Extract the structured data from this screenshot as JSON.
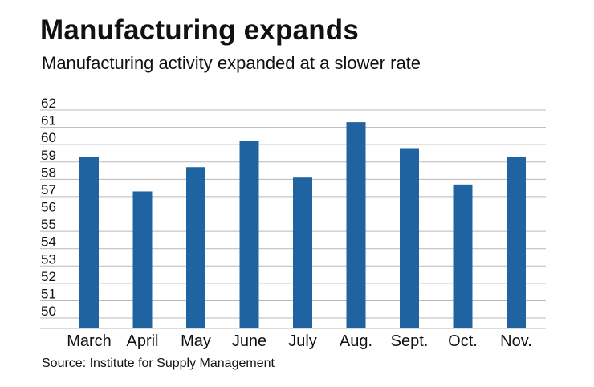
{
  "chart_data": {
    "type": "bar",
    "title": "Manufacturing expands",
    "subtitle": "Manufacturing activity expanded at a slower rate",
    "source": "Source: Institute for Supply Management",
    "categories": [
      "March",
      "April",
      "May",
      "June",
      "July",
      "Aug.",
      "Sept.",
      "Oct.",
      "Nov."
    ],
    "values": [
      59.3,
      57.3,
      58.7,
      60.2,
      58.1,
      61.3,
      59.8,
      57.7,
      59.3
    ],
    "ylim": [
      49.4,
      62
    ],
    "yticks": [
      50,
      51,
      52,
      53,
      54,
      55,
      56,
      57,
      58,
      59,
      60,
      61,
      62
    ],
    "xlabel": "",
    "ylabel": "",
    "grid": true,
    "bar_color": "#1f64a0",
    "grid_color": "#b8b8b8"
  }
}
